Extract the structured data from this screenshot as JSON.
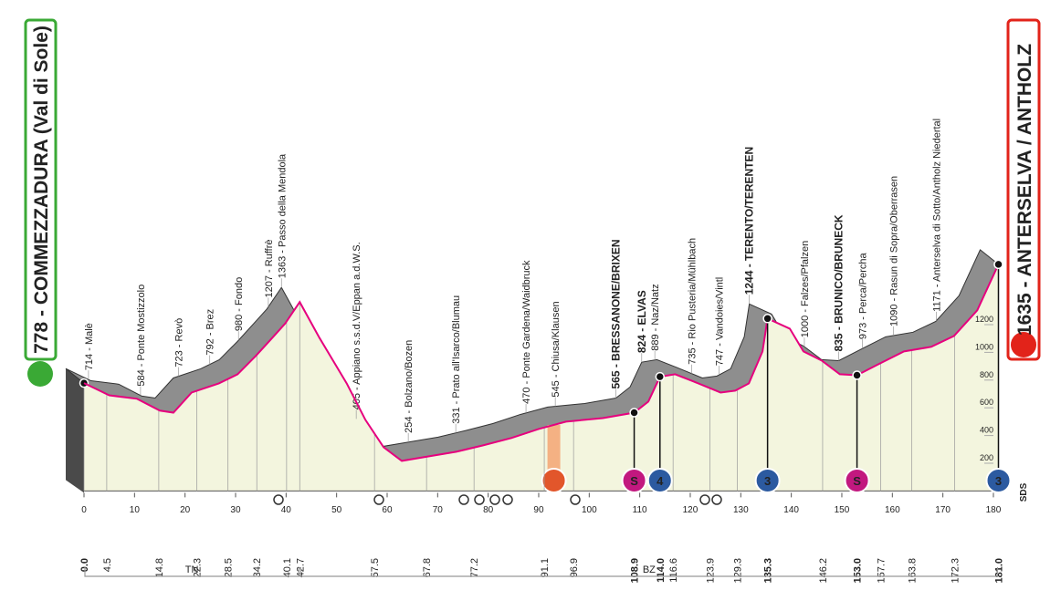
{
  "chart_data": {
    "type": "profile",
    "profile": {
      "color": "#e6007e",
      "x": [
        0,
        5,
        10.5,
        15,
        17.7,
        21.3,
        26.7,
        30.4,
        34,
        37.6,
        39.8,
        42.7,
        46.6,
        52,
        55.7,
        59.3,
        62.9,
        68.3,
        73.7,
        79,
        84.6,
        90,
        95.4,
        102.7,
        108.9,
        111.7,
        114,
        117,
        120.7,
        126,
        128.9,
        131.6,
        134.3,
        135.3,
        139.7,
        142.4,
        146,
        149.6,
        153,
        156.9,
        162.3,
        167.7,
        172.2,
        176.8,
        181
      ],
      "values": [
        778,
        690,
        665,
        580,
        565,
        710,
        776,
        842,
        974,
        1118,
        1207,
        1363,
        1105,
        776,
        513,
        316,
        217,
        250,
        283,
        329,
        382,
        447,
        500,
        526,
        565,
        645,
        824,
        842,
        789,
        710,
        724,
        776,
        1007,
        1244,
        1171,
        1007,
        941,
        842,
        835,
        908,
        1007,
        1040,
        1118,
        1303,
        1635
      ]
    },
    "xlim": [
      0,
      181
    ],
    "xticks": [
      0,
      10,
      20,
      30,
      40,
      50,
      60,
      70,
      80,
      90,
      100,
      110,
      120,
      130,
      140,
      150,
      160,
      170,
      180
    ],
    "y2lim": [
      0,
      1700
    ],
    "y2ticks": [
      200,
      400,
      600,
      800,
      1000,
      1200
    ],
    "waypoints": [
      {
        "km": {
          "value": 0,
          "label": "0.0"
        },
        "label": "778 - COMMEZZADURA (Val di Sole)",
        "bold": true,
        "terminal": "start"
      },
      {
        "km": 4.5,
        "label": "714 - Malè"
      },
      {
        "km": 14.8,
        "label": "584 - Ponte Mostizzolo"
      },
      {
        "km": 22.3,
        "label": "723 - Revò"
      },
      {
        "km": 28.5,
        "label": "792 - Brez"
      },
      {
        "km": 34.2,
        "label": "980 - Fondo"
      },
      {
        "km": 40.1,
        "label": "1207 - Ruffrè"
      },
      {
        "km": 42.7,
        "label": "1363 - Passo della Mendola"
      },
      {
        "km": 57.5,
        "label": "405 - Appiano s.s.d.V/Eppan a.d.W.S."
      },
      {
        "km": 67.8,
        "label": "254 - Bolzano/Bozen"
      },
      {
        "km": 77.2,
        "label": "331 - Prato all'Isarco/Blumau"
      },
      {
        "km": 91.1,
        "label": "470 - Ponte Gardena/Waidbruck"
      },
      {
        "km": 96.9,
        "label": "545 - Chiusa/Klausen"
      },
      {
        "km": 108.9,
        "label": "565 - BRESSANONE/BRIXEN",
        "bold": true
      },
      {
        "km": {
          "value": 114,
          "label": "114.0"
        },
        "label": "824 - ELVAS",
        "bold": true
      },
      {
        "km": 116.6,
        "label": "889 - Naz/Natz"
      },
      {
        "km": 123.9,
        "label": "735 - Rio Pusteria/Mühlbach"
      },
      {
        "km": 129.3,
        "label": "747 - Vandoies/Vintl"
      },
      {
        "km": 135.3,
        "label": "1244 - TERENTO/TERENTEN",
        "bold": true
      },
      {
        "km": 146.2,
        "label": "1000 - Falzes/Pfalzen"
      },
      {
        "km": {
          "value": 153,
          "label": "153.0"
        },
        "label": "835 - BRUNICO/BRUNECK",
        "bold": true
      },
      {
        "km": 157.7,
        "label": "973 - Perca/Percha"
      },
      {
        "km": 163.8,
        "label": "1090 - Rasun di Sopra/Oberrasen"
      },
      {
        "km": 172.3,
        "label": "1171 - Anterselva di Sotto/Antholz Niedertal"
      },
      {
        "km": {
          "value": 181,
          "label": "181.0"
        },
        "label": "1635 - ANTERSELVA / ANTHOLZ",
        "bold": true,
        "terminal": "finish"
      }
    ],
    "markers": [
      {
        "km": 93,
        "kind": "feed"
      },
      {
        "km": 108.9,
        "kind": "sprint",
        "symbol": "S"
      },
      {
        "km": 114,
        "kind": "climb",
        "symbol": "4"
      },
      {
        "km": 135.3,
        "kind": "climb",
        "symbol": "3"
      },
      {
        "km": 153,
        "kind": "sprint",
        "symbol": "S"
      },
      {
        "km": 181,
        "kind": "climb",
        "symbol": "3"
      }
    ],
    "regions": [
      {
        "label": "TN",
        "from": 0,
        "to": 42.7
      },
      {
        "label": "BZ",
        "from": 42.7,
        "to": 181
      }
    ],
    "logo": "SDS"
  }
}
